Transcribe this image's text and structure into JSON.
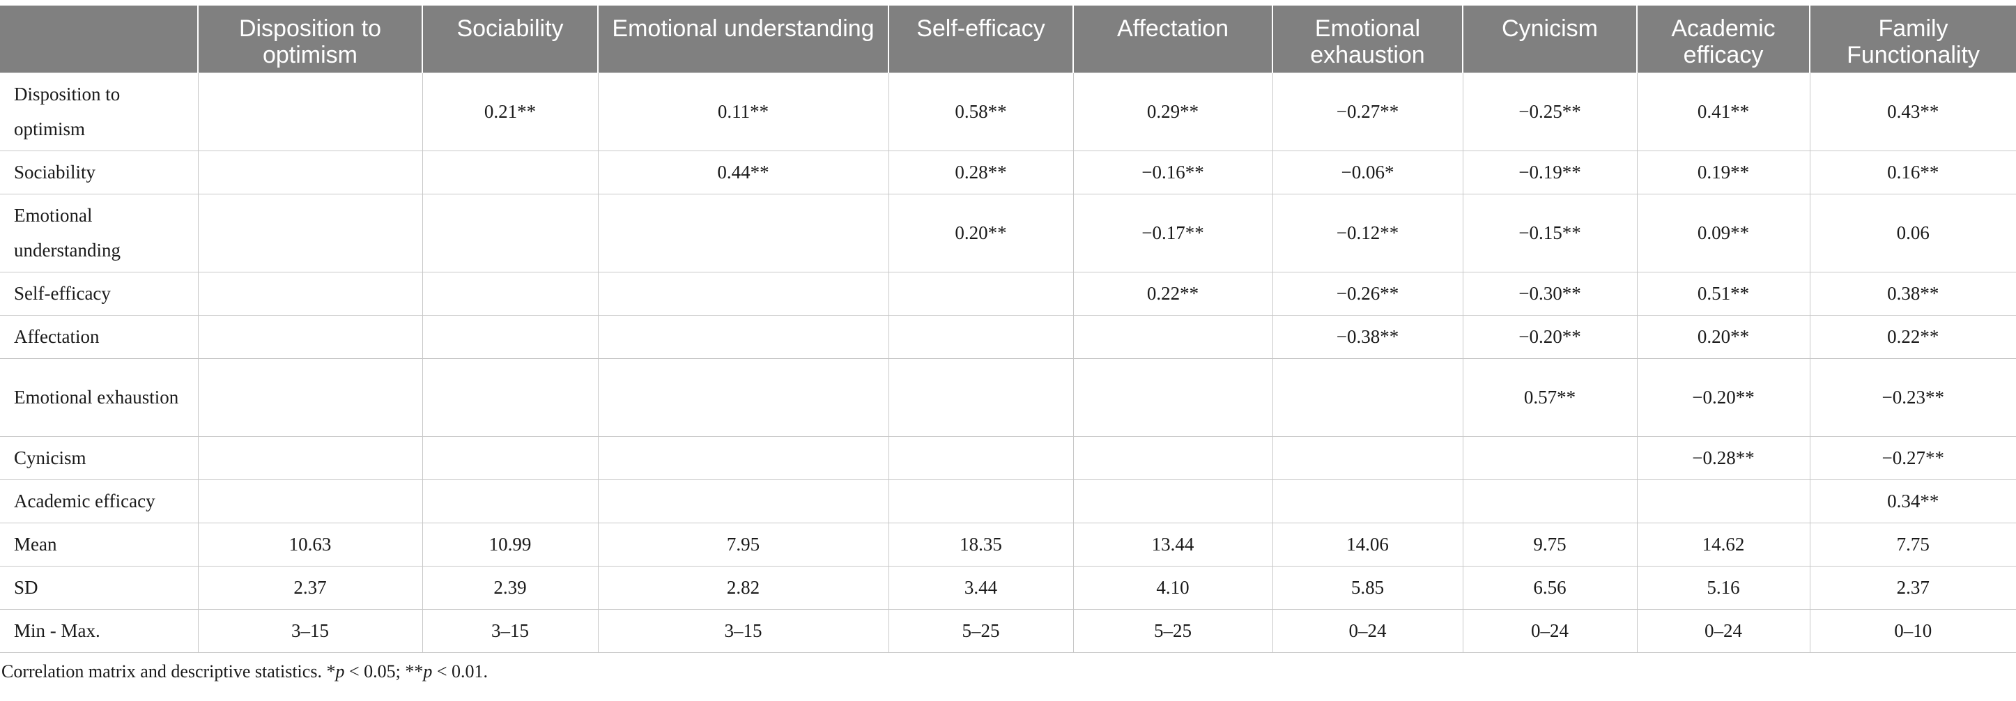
{
  "table": {
    "columns": [
      "",
      "Disposition to optimism",
      "Sociability",
      "Emotional understanding",
      "Self-efficacy",
      "Affectation",
      "Emotional exhaustion",
      "Cynicism",
      "Academic efficacy",
      "Family Functionality"
    ],
    "rows": [
      {
        "label": "Disposition to optimism",
        "tall": true,
        "cells": [
          "",
          "0.21**",
          "0.11**",
          "0.58**",
          "0.29**",
          "−0.27**",
          "−0.25**",
          "0.41**",
          "0.43**"
        ]
      },
      {
        "label": "Sociability",
        "tall": false,
        "cells": [
          "",
          "",
          "0.44**",
          "0.28**",
          "−0.16**",
          "−0.06*",
          "−0.19**",
          "0.19**",
          "0.16**"
        ]
      },
      {
        "label": "Emotional understanding",
        "tall": true,
        "cells": [
          "",
          "",
          "",
          "0.20**",
          "−0.17**",
          "−0.12**",
          "−0.15**",
          "0.09**",
          "0.06"
        ]
      },
      {
        "label": "Self-efficacy",
        "tall": false,
        "cells": [
          "",
          "",
          "",
          "",
          "0.22**",
          "−0.26**",
          "−0.30**",
          "0.51**",
          "0.38**"
        ]
      },
      {
        "label": "Affectation",
        "tall": false,
        "cells": [
          "",
          "",
          "",
          "",
          "",
          "−0.38**",
          "−0.20**",
          "0.20**",
          "0.22**"
        ]
      },
      {
        "label": "Emotional exhaustion",
        "tall": true,
        "cells": [
          "",
          "",
          "",
          "",
          "",
          "",
          "0.57**",
          "−0.20**",
          "−0.23**"
        ]
      },
      {
        "label": "Cynicism",
        "tall": false,
        "cells": [
          "",
          "",
          "",
          "",
          "",
          "",
          "",
          "−0.28**",
          "−0.27**"
        ]
      },
      {
        "label": "Academic efficacy",
        "tall": false,
        "cells": [
          "",
          "",
          "",
          "",
          "",
          "",
          "",
          "",
          "0.34**"
        ]
      },
      {
        "label": "Mean",
        "tall": false,
        "cells": [
          "10.63",
          "10.99",
          "7.95",
          "18.35",
          "13.44",
          "14.06",
          "9.75",
          "14.62",
          "7.75"
        ]
      },
      {
        "label": "SD",
        "tall": false,
        "cells": [
          "2.37",
          "2.39",
          "2.82",
          "3.44",
          "4.10",
          "5.85",
          "6.56",
          "5.16",
          "2.37"
        ]
      },
      {
        "label": "Min - Max.",
        "tall": false,
        "cells": [
          "3–15",
          "3–15",
          "3–15",
          "5–25",
          "5–25",
          "0–24",
          "0–24",
          "0–24",
          "0–10"
        ]
      }
    ]
  },
  "note": {
    "text": "Correlation matrix and descriptive statistics. ",
    "p1_symbol": "*",
    "p1_var": "p",
    "p1_rest": " < 0.05; ",
    "p2_symbol": "**",
    "p2_var": "p",
    "p2_rest": " < 0.01."
  }
}
